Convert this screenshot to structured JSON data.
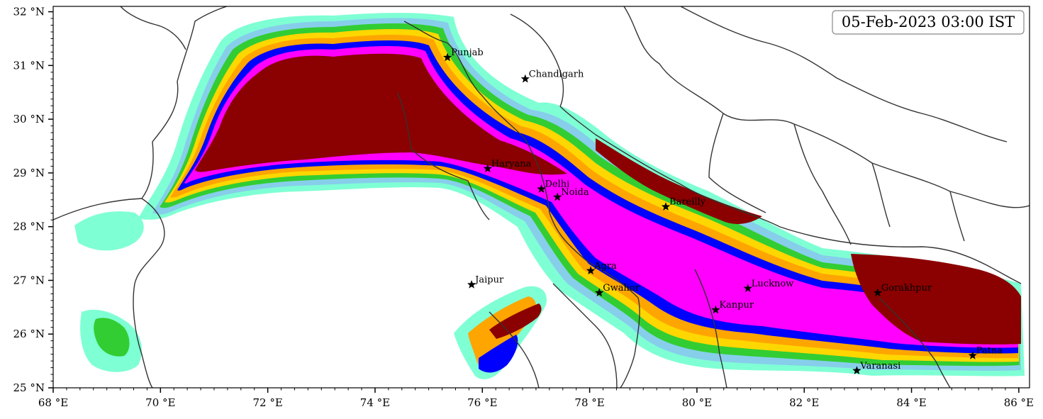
{
  "title": "05-Feb-2023 03:00 IST",
  "chart_data": {
    "type": "heatmap",
    "xlim": [
      68,
      86.2
    ],
    "ylim": [
      25,
      32.1
    ],
    "x_ticks": [
      {
        "value": 68,
        "label": "68 °E"
      },
      {
        "value": 70,
        "label": "70 °E"
      },
      {
        "value": 72,
        "label": "72 °E"
      },
      {
        "value": 74,
        "label": "74 °E"
      },
      {
        "value": 76,
        "label": "76 °E"
      },
      {
        "value": 78,
        "label": "78 °E"
      },
      {
        "value": 80,
        "label": "80 °E"
      },
      {
        "value": 82,
        "label": "82 °E"
      },
      {
        "value": 84,
        "label": "84 °E"
      },
      {
        "value": 86,
        "label": "86 °E"
      }
    ],
    "y_ticks": [
      {
        "value": 25,
        "label": "25 °N"
      },
      {
        "value": 26,
        "label": "26 °N"
      },
      {
        "value": 27,
        "label": "27 °N"
      },
      {
        "value": 28,
        "label": "28 °N"
      },
      {
        "value": 29,
        "label": "29 °N"
      },
      {
        "value": 30,
        "label": "30 °N"
      },
      {
        "value": 31,
        "label": "31 °N"
      },
      {
        "value": 32,
        "label": "32 °N"
      }
    ],
    "contour_colors": [
      "#7fffd4",
      "#87ceeb",
      "#32cd32",
      "#ffd700",
      "#ffa500",
      "#0000ff",
      "#ff00ff",
      "#8b0000"
    ],
    "cities": [
      {
        "name": "Punjab",
        "lon": 75.35,
        "lat": 31.15
      },
      {
        "name": "Chandigarh",
        "lon": 76.8,
        "lat": 30.75
      },
      {
        "name": "Haryana",
        "lon": 76.1,
        "lat": 29.08
      },
      {
        "name": "Delhi",
        "lon": 77.1,
        "lat": 28.7
      },
      {
        "name": "Noida",
        "lon": 77.4,
        "lat": 28.55
      },
      {
        "name": "Bareilly",
        "lon": 79.42,
        "lat": 28.37
      },
      {
        "name": "Agra",
        "lon": 78.02,
        "lat": 27.18
      },
      {
        "name": "Jaipur",
        "lon": 75.8,
        "lat": 26.92
      },
      {
        "name": "Lucknow",
        "lon": 80.95,
        "lat": 26.85
      },
      {
        "name": "Gorakhpur",
        "lon": 83.37,
        "lat": 26.77
      },
      {
        "name": "Gwalior",
        "lon": 78.18,
        "lat": 26.77
      },
      {
        "name": "Kanpur",
        "lon": 80.35,
        "lat": 26.45
      },
      {
        "name": "Patna",
        "lon": 85.14,
        "lat": 25.6
      },
      {
        "name": "Varanasi",
        "lon": 82.98,
        "lat": 25.32
      }
    ]
  }
}
